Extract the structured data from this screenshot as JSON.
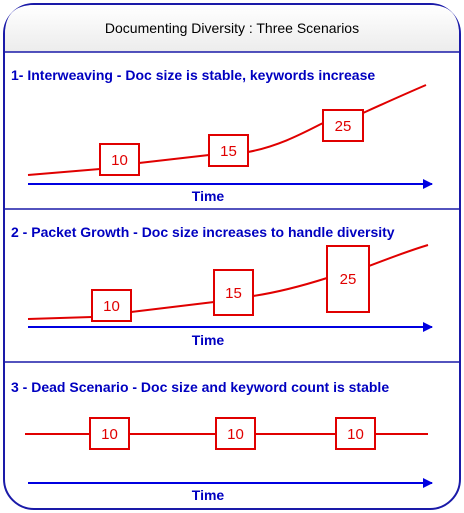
{
  "title": "Documenting Diversity : Three Scenarios",
  "colors": {
    "outline": "#1a1aa8",
    "heading": "#0000c0",
    "curve": "#e00000",
    "box_border": "#e00000",
    "axis": "#0000e0",
    "title_bg": "#f4f4f4"
  },
  "scenarios": [
    {
      "heading": "1- Interweaving - Doc size is stable, keywords increase",
      "axis_label": "Time",
      "boxes": [
        {
          "label": "10"
        },
        {
          "label": "15"
        },
        {
          "label": "25"
        }
      ]
    },
    {
      "heading": "2 - Packet Growth - Doc size increases to handle diversity",
      "axis_label": "Time",
      "boxes": [
        {
          "label": "10"
        },
        {
          "label": "15"
        },
        {
          "label": "25"
        }
      ]
    },
    {
      "heading": "3 - Dead Scenario - Doc size and keyword count is stable",
      "axis_label": "Time",
      "boxes": [
        {
          "label": "10"
        },
        {
          "label": "10"
        },
        {
          "label": "10"
        }
      ]
    }
  ]
}
